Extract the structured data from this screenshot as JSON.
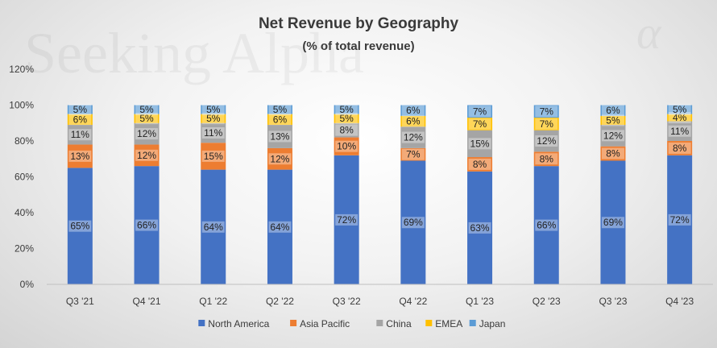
{
  "watermark": {
    "text": "Seeking Alpha",
    "symbol": "α"
  },
  "chart_data": {
    "type": "bar",
    "stacked": true,
    "title": "Net Revenue by Geography",
    "subtitle": "(% of total revenue)",
    "categories": [
      "Q3 '21",
      "Q4 '21",
      "Q1 '22",
      "Q2 '22",
      "Q3 '22",
      "Q4 '22",
      "Q1 '23",
      "Q2 '23",
      "Q3 '23",
      "Q4 '23"
    ],
    "ylim": [
      0,
      120
    ],
    "yticks": [
      0,
      20,
      40,
      60,
      80,
      100,
      120
    ],
    "ytick_suffix": "%",
    "grid": false,
    "legend": "bottom",
    "series": [
      {
        "name": "North America",
        "color": "#4472C4",
        "values": [
          65,
          66,
          64,
          64,
          72,
          69,
          63,
          66,
          69,
          72
        ]
      },
      {
        "name": "Asia Pacific",
        "color": "#ED7D31",
        "values": [
          13,
          12,
          15,
          12,
          10,
          7,
          8,
          8,
          8,
          8
        ]
      },
      {
        "name": "China",
        "color": "#A5A5A5",
        "values": [
          11,
          12,
          11,
          13,
          8,
          12,
          15,
          12,
          12,
          11
        ]
      },
      {
        "name": "EMEA",
        "color": "#FFC000",
        "values": [
          6,
          5,
          5,
          6,
          5,
          6,
          7,
          7,
          5,
          4
        ]
      },
      {
        "name": "Japan",
        "color": "#5B9BD5",
        "values": [
          5,
          5,
          5,
          5,
          5,
          6,
          7,
          7,
          6,
          5
        ]
      }
    ]
  }
}
